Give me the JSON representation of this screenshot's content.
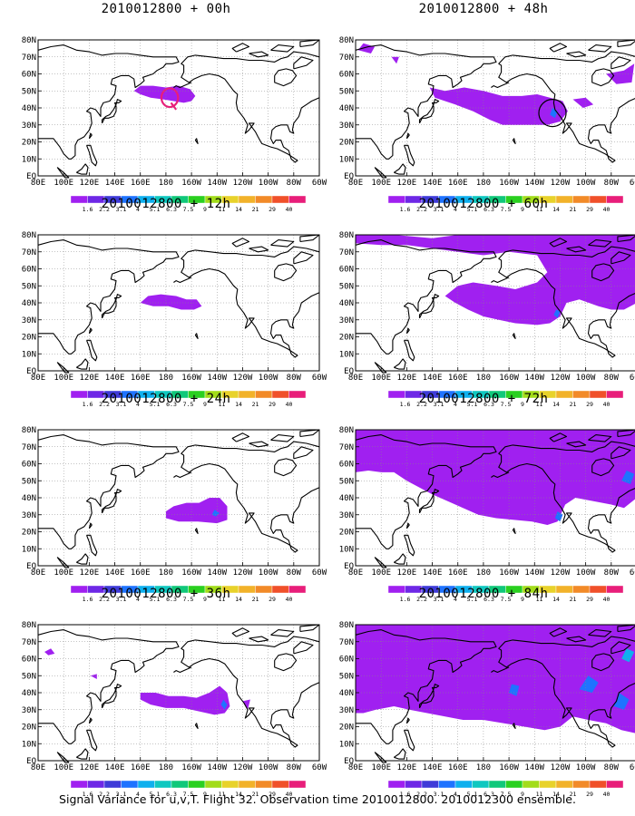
{
  "panels": [
    {
      "title": "2010012800 + 00h",
      "pattern": "p00"
    },
    {
      "title": "2010012800 + 48h",
      "pattern": "p48"
    },
    {
      "title": "2010012800 + 12h",
      "pattern": "p12"
    },
    {
      "title": "2010012800 + 60h",
      "pattern": "p60"
    },
    {
      "title": "2010012800 + 24h",
      "pattern": "p24"
    },
    {
      "title": "2010012800 + 72h",
      "pattern": "p72"
    },
    {
      "title": "2010012800 + 36h",
      "pattern": "p36"
    },
    {
      "title": "2010012800 + 84h",
      "pattern": "p84"
    }
  ],
  "lat_labels": [
    "80N",
    "70N",
    "60N",
    "50N",
    "40N",
    "30N",
    "20N",
    "10N",
    "EQ"
  ],
  "lon_labels": [
    "80E",
    "100E",
    "120E",
    "140E",
    "160E",
    "180",
    "160W",
    "140W",
    "120W",
    "100W",
    "80W",
    "60W"
  ],
  "colorbar": {
    "labels": [
      "1.6",
      "2.2",
      "3.1",
      "4",
      "5.1",
      "6.3",
      "7.5",
      "9",
      "11",
      "14",
      "21",
      "29",
      "40"
    ],
    "colors": [
      "#a020f0",
      "#6e28e6",
      "#3f3bd8",
      "#1f73ff",
      "#0fb0ee",
      "#10c8c0",
      "#10c87a",
      "#2ad020",
      "#a2dc1a",
      "#e8d22a",
      "#f2b22a",
      "#f28a28",
      "#f0502a",
      "#e81e7a"
    ]
  },
  "caption": "Signal Variance for u,v,T. Flight 32. Observation time 2010012800. 2010012300 ensemble."
}
